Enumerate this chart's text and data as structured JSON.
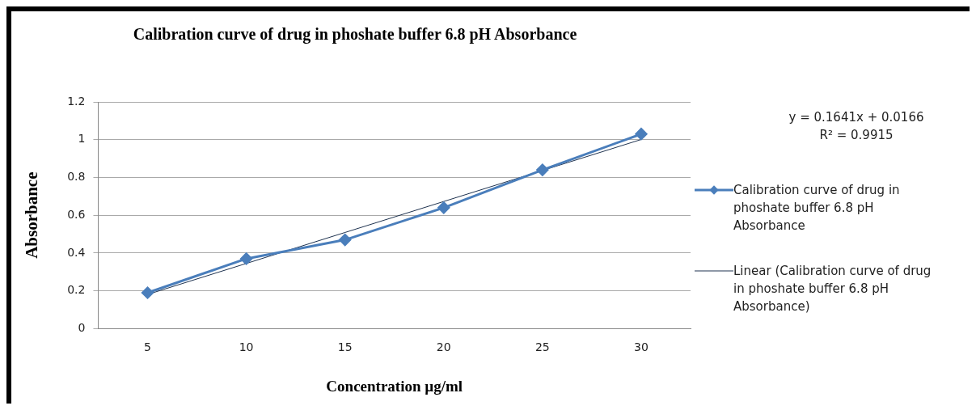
{
  "chart_data": {
    "type": "line",
    "title": "Calibration curve of drug in phoshate buffer 6.8 pH Absorbance",
    "xlabel": "Concentration µg/ml",
    "ylabel": "Absorbance",
    "categories": [
      "5",
      "10",
      "15",
      "20",
      "25",
      "30"
    ],
    "series": [
      {
        "name": "Calibration curve of drug in phoshate buffer 6.8 pH Absorbance",
        "color": "#4a7ebb",
        "values": [
          0.19,
          0.37,
          0.47,
          0.64,
          0.84,
          1.03
        ],
        "marker": "diamond"
      },
      {
        "name": "Linear (Calibration curve of drug in phoshate buffer 6.8 pH Absorbance)",
        "color": "#1f3350",
        "values": [
          0.181,
          0.345,
          0.509,
          0.673,
          0.837,
          1.001
        ],
        "marker": "none"
      }
    ],
    "annotations": [
      "y = 0.1641x + 0.0166",
      "R² = 0.9915"
    ],
    "ylim": [
      0,
      1.2
    ],
    "yticks": [
      0,
      0.2,
      0.4,
      0.6,
      0.8,
      1,
      1.2
    ],
    "grid": "y",
    "legend": "right"
  }
}
